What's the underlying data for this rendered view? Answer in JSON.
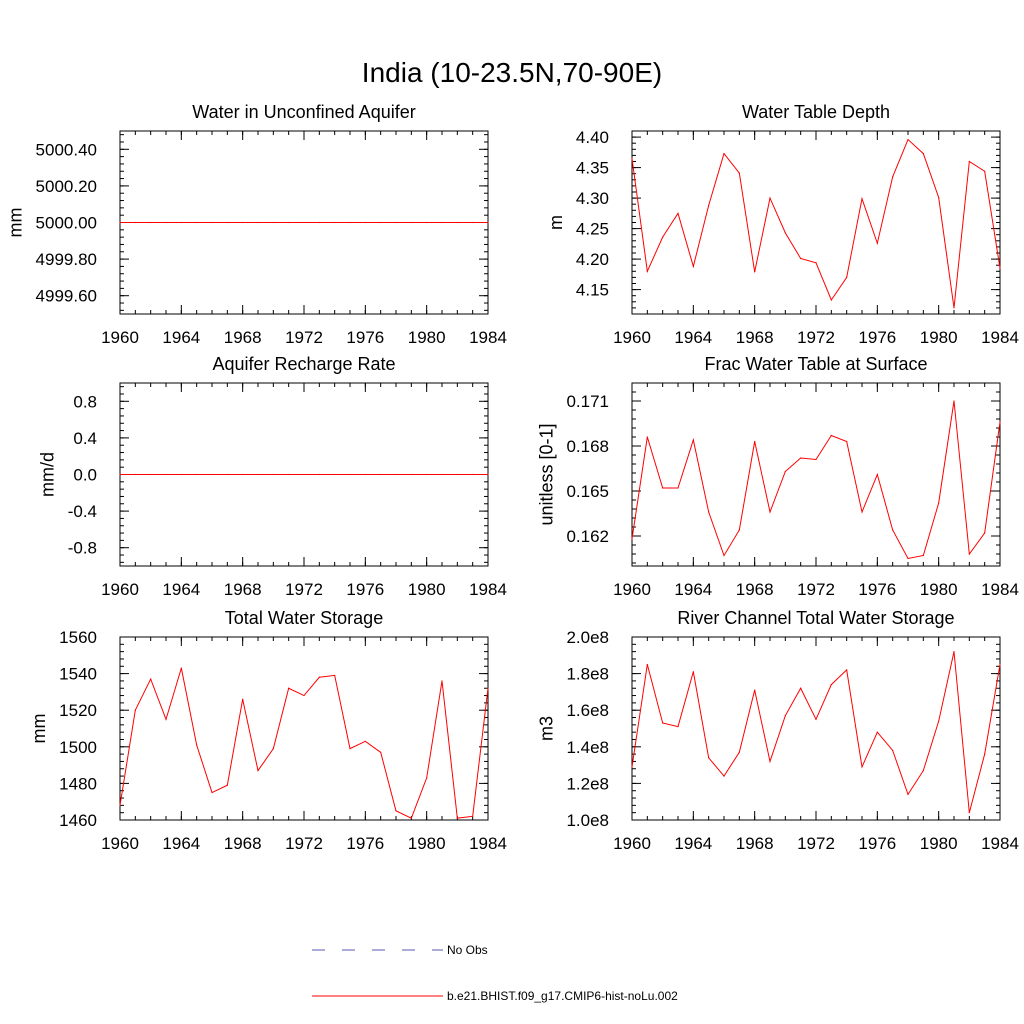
{
  "figure": {
    "title": "India (10-23.5N,70-90E)"
  },
  "colors": {
    "model": "#ff0000",
    "obs": "#5a5ab4",
    "axis": "#000000"
  },
  "legend": {
    "placement": "bottom-center",
    "items": [
      {
        "label": "No Obs",
        "style": "dashed",
        "color": "#5a5ab4"
      },
      {
        "label": "b.e21.BHIST.f09_g17.CMIP6-hist-noLu.002",
        "style": "solid",
        "color": "#ff0000"
      }
    ]
  },
  "chart_data": [
    {
      "type": "line",
      "title": "Water in Unconfined Aquifer",
      "xlabel": "",
      "ylabel": "mm",
      "xlim": [
        1960,
        1984
      ],
      "ylim": [
        4999.5,
        5000.5
      ],
      "xticks": [
        1960,
        1964,
        1968,
        1972,
        1976,
        1980,
        1984
      ],
      "xtick_labels": [
        "1960",
        "1964",
        "1968",
        "1972",
        "1976",
        "1980",
        "1984"
      ],
      "yticks": [
        4999.6,
        4999.8,
        5000.0,
        5000.2,
        5000.4
      ],
      "ytick_labels": [
        "4999.60",
        "4999.80",
        "5000.00",
        "5000.20",
        "5000.40"
      ],
      "grid": false,
      "series": [
        {
          "x": [
            1960,
            1961,
            1962,
            1963,
            1964,
            1965,
            1966,
            1967,
            1968,
            1969,
            1970,
            1971,
            1972,
            1973,
            1974,
            1975,
            1976,
            1977,
            1978,
            1979,
            1980,
            1981,
            1982,
            1983,
            1984
          ],
          "values": [
            5000,
            5000,
            5000,
            5000,
            5000,
            5000,
            5000,
            5000,
            5000,
            5000,
            5000,
            5000,
            5000,
            5000,
            5000,
            5000,
            5000,
            5000,
            5000,
            5000,
            5000,
            5000,
            5000,
            5000,
            5000
          ]
        }
      ]
    },
    {
      "type": "line",
      "title": "Water Table Depth",
      "xlabel": "",
      "ylabel": "m",
      "xlim": [
        1960,
        1984
      ],
      "ylim": [
        4.11,
        4.41
      ],
      "xticks": [
        1960,
        1964,
        1968,
        1972,
        1976,
        1980,
        1984
      ],
      "xtick_labels": [
        "1960",
        "1964",
        "1968",
        "1972",
        "1976",
        "1980",
        "1984"
      ],
      "yticks": [
        4.15,
        4.2,
        4.25,
        4.3,
        4.35,
        4.4
      ],
      "ytick_labels": [
        "4.15",
        "4.20",
        "4.25",
        "4.30",
        "4.35",
        "4.40"
      ],
      "grid": false,
      "series": [
        {
          "x": [
            1960,
            1961,
            1962,
            1963,
            1964,
            1965,
            1966,
            1967,
            1968,
            1969,
            1970,
            1971,
            1972,
            1973,
            1974,
            1975,
            1976,
            1977,
            1978,
            1979,
            1980,
            1981,
            1982,
            1983,
            1984
          ],
          "values": [
            4.365,
            4.18,
            4.236,
            4.275,
            4.188,
            4.288,
            4.373,
            4.341,
            4.179,
            4.3,
            4.243,
            4.201,
            4.194,
            4.133,
            4.17,
            4.299,
            4.226,
            4.335,
            4.396,
            4.373,
            4.301,
            4.12,
            4.36,
            4.344,
            4.185
          ]
        }
      ]
    },
    {
      "type": "line",
      "title": "Aquifer Recharge Rate",
      "xlabel": "",
      "ylabel": "mm/d",
      "xlim": [
        1960,
        1984
      ],
      "ylim": [
        -1.0,
        1.0
      ],
      "xticks": [
        1960,
        1964,
        1968,
        1972,
        1976,
        1980,
        1984
      ],
      "xtick_labels": [
        "1960",
        "1964",
        "1968",
        "1972",
        "1976",
        "1980",
        "1984"
      ],
      "yticks": [
        -0.8,
        -0.4,
        0.0,
        0.4,
        0.8
      ],
      "ytick_labels": [
        "-0.8",
        "-0.4",
        "0.0",
        "0.4",
        "0.8"
      ],
      "grid": false,
      "series": [
        {
          "x": [
            1960,
            1961,
            1962,
            1963,
            1964,
            1965,
            1966,
            1967,
            1968,
            1969,
            1970,
            1971,
            1972,
            1973,
            1974,
            1975,
            1976,
            1977,
            1978,
            1979,
            1980,
            1981,
            1982,
            1983,
            1984
          ],
          "values": [
            0,
            0,
            0,
            0,
            0,
            0,
            0,
            0,
            0,
            0,
            0,
            0,
            0,
            0,
            0,
            0,
            0,
            0,
            0,
            0,
            0,
            0,
            0,
            0,
            0
          ]
        }
      ]
    },
    {
      "type": "line",
      "title": "Frac Water Table at Surface",
      "xlabel": "",
      "ylabel": "unitless [0-1]",
      "xlim": [
        1960,
        1984
      ],
      "ylim": [
        0.16,
        0.1722
      ],
      "xticks": [
        1960,
        1964,
        1968,
        1972,
        1976,
        1980,
        1984
      ],
      "xtick_labels": [
        "1960",
        "1964",
        "1968",
        "1972",
        "1976",
        "1980",
        "1984"
      ],
      "yticks": [
        0.162,
        0.165,
        0.168,
        0.171
      ],
      "ytick_labels": [
        "0.162",
        "0.165",
        "0.168",
        "0.171"
      ],
      "grid": false,
      "series": [
        {
          "x": [
            1960,
            1961,
            1962,
            1963,
            1964,
            1965,
            1966,
            1967,
            1968,
            1969,
            1970,
            1971,
            1972,
            1973,
            1974,
            1975,
            1976,
            1977,
            1978,
            1979,
            1980,
            1981,
            1982,
            1983,
            1984
          ],
          "values": [
            0.1618,
            0.1686,
            0.1652,
            0.1652,
            0.1684,
            0.1636,
            0.1607,
            0.1624,
            0.1683,
            0.1636,
            0.1663,
            0.1672,
            0.1671,
            0.1687,
            0.1683,
            0.1636,
            0.1661,
            0.1624,
            0.1605,
            0.1607,
            0.1642,
            0.171,
            0.1608,
            0.1622,
            0.1696
          ]
        }
      ]
    },
    {
      "type": "line",
      "title": "Total Water Storage",
      "xlabel": "",
      "ylabel": "mm",
      "xlim": [
        1960,
        1984
      ],
      "ylim": [
        1460,
        1560
      ],
      "xticks": [
        1960,
        1964,
        1968,
        1972,
        1976,
        1980,
        1984
      ],
      "xtick_labels": [
        "1960",
        "1964",
        "1968",
        "1972",
        "1976",
        "1980",
        "1984"
      ],
      "yticks": [
        1460,
        1480,
        1500,
        1520,
        1540,
        1560
      ],
      "ytick_labels": [
        "1460",
        "1480",
        "1500",
        "1520",
        "1540",
        "1560"
      ],
      "grid": false,
      "series": [
        {
          "x": [
            1960,
            1961,
            1962,
            1963,
            1964,
            1965,
            1966,
            1967,
            1968,
            1969,
            1970,
            1971,
            1972,
            1973,
            1974,
            1975,
            1976,
            1977,
            1978,
            1979,
            1980,
            1981,
            1982,
            1983,
            1984
          ],
          "values": [
            1468,
            1520,
            1537,
            1515,
            1543,
            1501,
            1475,
            1479,
            1526,
            1487,
            1499,
            1532,
            1528,
            1538,
            1539,
            1499,
            1503,
            1497,
            1465,
            1461,
            1483,
            1536,
            1461,
            1462,
            1532
          ]
        }
      ]
    },
    {
      "type": "line",
      "title": "River Channel Total Water Storage",
      "xlabel": "",
      "ylabel": "m3",
      "xlim": [
        1960,
        1984
      ],
      "ylim": [
        100000000,
        200000000
      ],
      "xticks": [
        1960,
        1964,
        1968,
        1972,
        1976,
        1980,
        1984
      ],
      "xtick_labels": [
        "1960",
        "1964",
        "1968",
        "1972",
        "1976",
        "1980",
        "1984"
      ],
      "yticks": [
        100000000,
        120000000,
        140000000,
        160000000,
        180000000,
        200000000
      ],
      "ytick_labels": [
        "1.0e8",
        "1.2e8",
        "1.4e8",
        "1.6e8",
        "1.8e8",
        "2.0e8"
      ],
      "grid": false,
      "series": [
        {
          "x": [
            1960,
            1961,
            1962,
            1963,
            1964,
            1965,
            1966,
            1967,
            1968,
            1969,
            1970,
            1971,
            1972,
            1973,
            1974,
            1975,
            1976,
            1977,
            1978,
            1979,
            1980,
            1981,
            1982,
            1983,
            1984
          ],
          "values": [
            129000000,
            185000000,
            153000000,
            151000000,
            181000000,
            134000000,
            124000000,
            137000000,
            171000000,
            132000000,
            157000000,
            172000000,
            155000000,
            174000000,
            182000000,
            129000000,
            148000000,
            138000000,
            114000000,
            127000000,
            154000000,
            192000000,
            104000000,
            136000000,
            185000000
          ]
        }
      ]
    }
  ]
}
